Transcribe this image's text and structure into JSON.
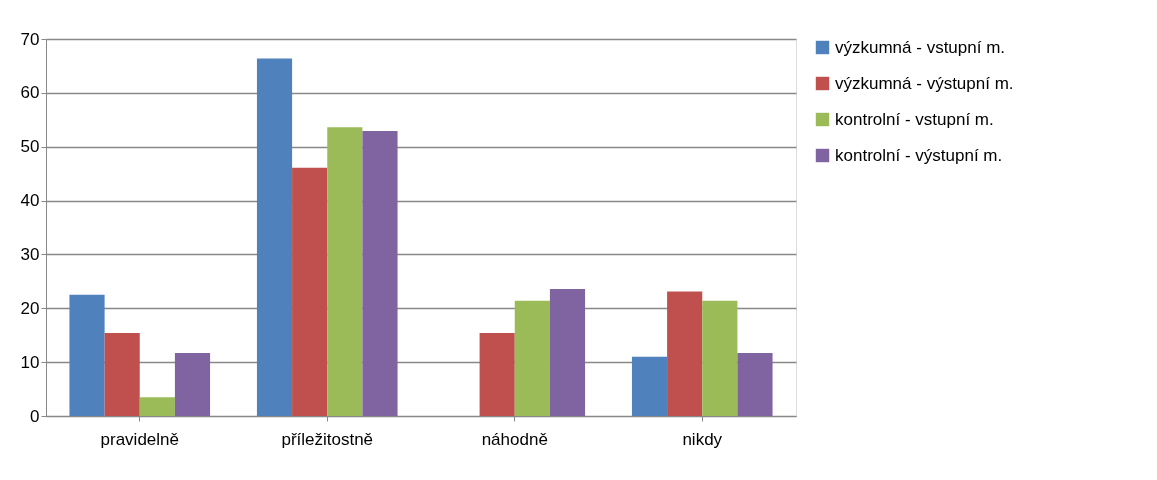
{
  "chart_data": {
    "type": "bar",
    "categories": [
      "pravidelně",
      "příležitostně",
      "náhodně",
      "nikdy"
    ],
    "series": [
      {
        "name": "výzkumná - vstupní m.",
        "color": "#4f81bd",
        "values": [
          22.5,
          66.4,
          0,
          11.0
        ]
      },
      {
        "name": "výzkumná - výstupní m.",
        "color": "#c0504d",
        "values": [
          15.4,
          46.1,
          15.4,
          23.1
        ]
      },
      {
        "name": "kontrolní - vstupní m.",
        "color": "#9bbb59",
        "values": [
          3.5,
          53.6,
          21.4,
          21.4
        ]
      },
      {
        "name": "kontrolní - výstupní m.",
        "color": "#8064a2",
        "values": [
          11.7,
          52.9,
          23.6,
          11.7
        ]
      }
    ],
    "ylim": [
      0,
      70
    ],
    "yticks": [
      0,
      10,
      20,
      30,
      40,
      50,
      60,
      70
    ],
    "grid": "y",
    "legend": "right"
  }
}
